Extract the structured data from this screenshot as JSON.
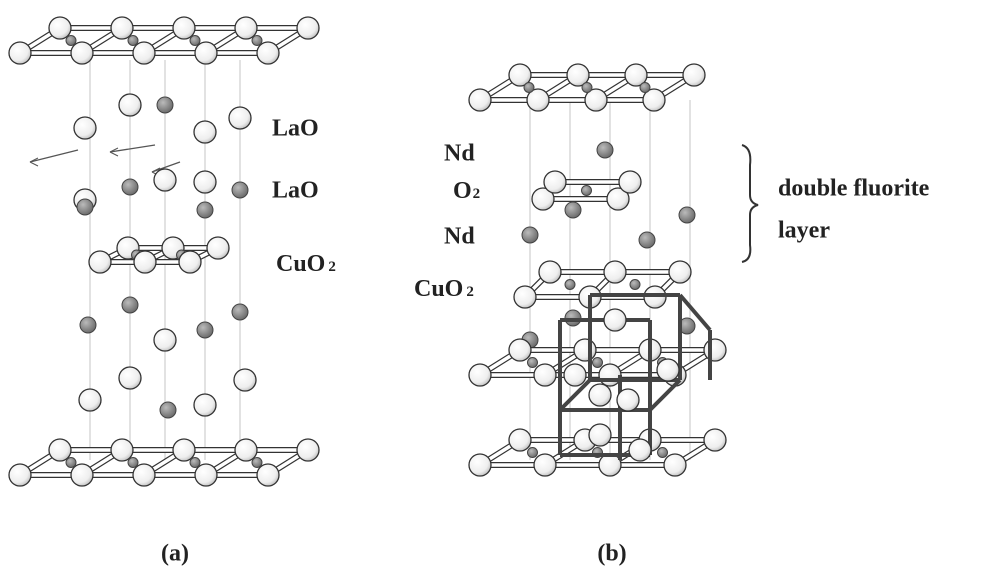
{
  "panel_a": {
    "labels": [
      {
        "text": "LaO"
      },
      {
        "text": "LaO"
      },
      {
        "text": "CuO",
        "sub": "2"
      }
    ],
    "caption": "(a)"
  },
  "panel_b": {
    "labels": [
      {
        "text": "Nd"
      },
      {
        "text": "O",
        "sub": "2"
      },
      {
        "text": "Nd"
      },
      {
        "text": "CuO",
        "sub": "2"
      }
    ],
    "bracket_label": [
      "double fluorite",
      "layer"
    ],
    "caption": "(b)"
  }
}
